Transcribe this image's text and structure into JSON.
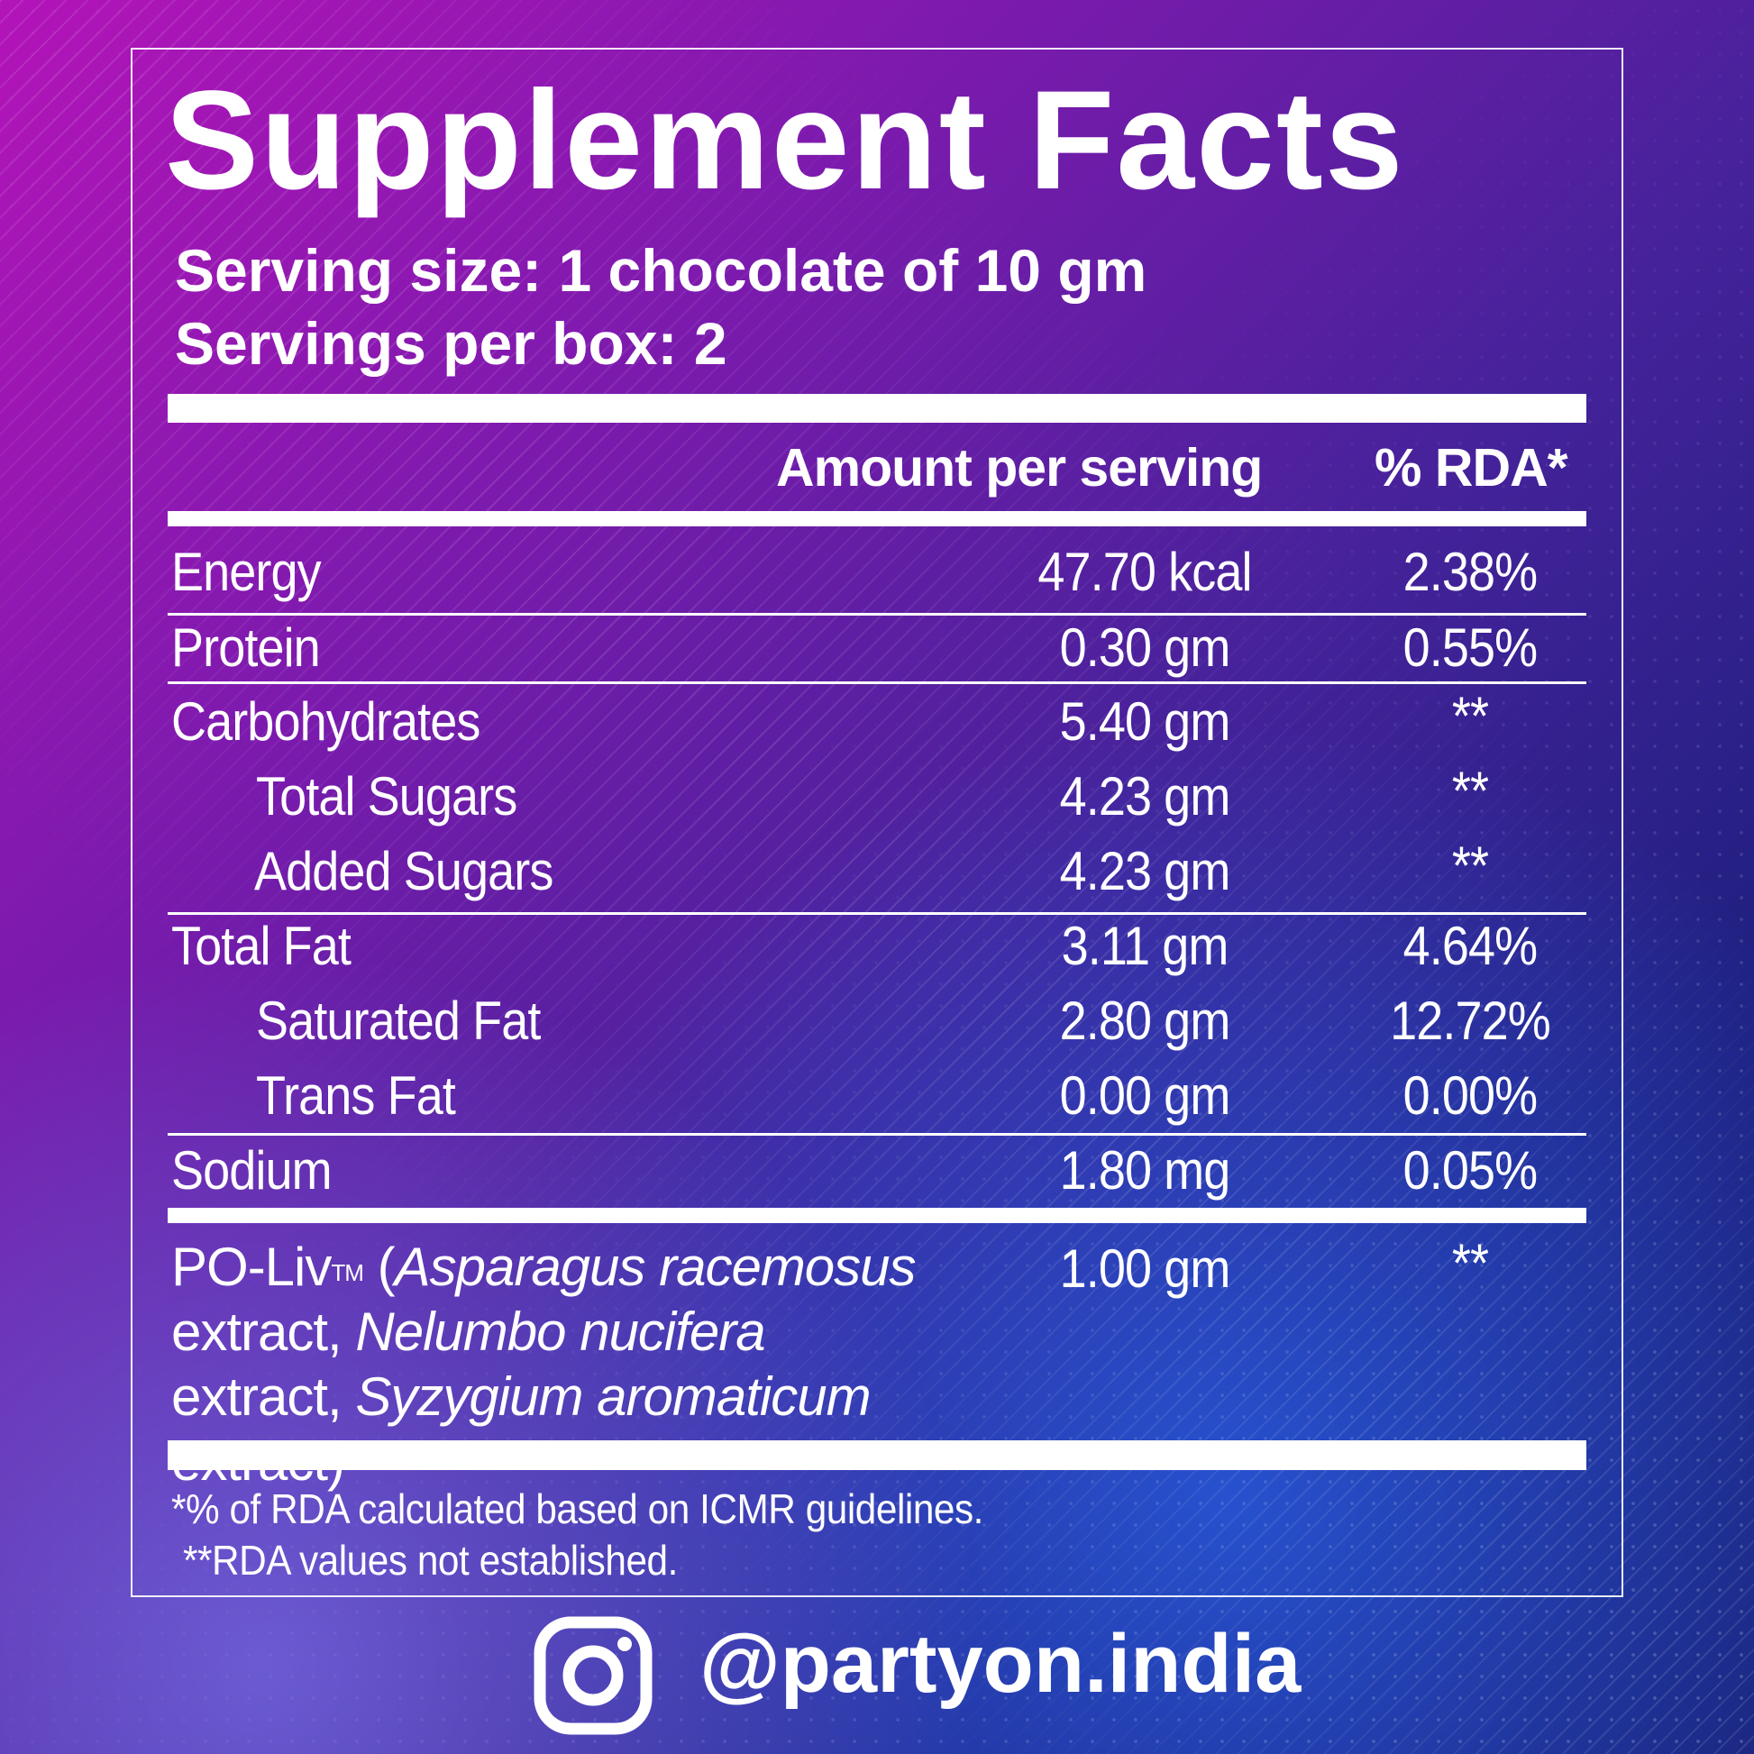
{
  "title": "Supplement Facts",
  "serving_size": "Serving size: 1 chocolate of 10 gm",
  "servings_per_box": "Servings per box: 2",
  "columns": {
    "amount": "Amount per serving",
    "rda": "% RDA*"
  },
  "rows": [
    {
      "label": "Energy",
      "amount": "47.70 kcal",
      "rda": "2.38%"
    },
    {
      "label": "Protein",
      "amount": "0.30 gm",
      "rda": "0.55%"
    },
    {
      "label": "Carbohydrates",
      "amount": "5.40 gm",
      "rda": "**"
    },
    {
      "label": "Total Sugars",
      "amount": "4.23 gm",
      "rda": "**"
    },
    {
      "label": "Added Sugars",
      "amount": "4.23 gm",
      "rda": "**"
    },
    {
      "label": "Total Fat",
      "amount": "3.11 gm",
      "rda": "4.64%"
    },
    {
      "label": "Saturated Fat",
      "amount": "2.80 gm",
      "rda": "12.72%"
    },
    {
      "label": "Trans Fat",
      "amount": "0.00 gm",
      "rda": "0.00%"
    },
    {
      "label": "Sodium",
      "amount": "1.80 mg",
      "rda": "0.05%"
    }
  ],
  "poliv": {
    "name": "PO-Liv",
    "tm": "TM",
    "open": " (",
    "ing1": "Asparagus racemosus",
    "ext1": " extract, ",
    "ing2": "Nelumbo nucifera",
    "ext2": " extract, ",
    "ing3": "Syzygium aromaticum",
    "ext3": " extract)",
    "amount": "1.00 gm",
    "rda": "**"
  },
  "footnotes": [
    "*% of RDA calculated based on ICMR guidelines.",
    "**RDA values not established."
  ],
  "social": {
    "icon": "instagram-icon",
    "handle": "@partyon.india"
  }
}
